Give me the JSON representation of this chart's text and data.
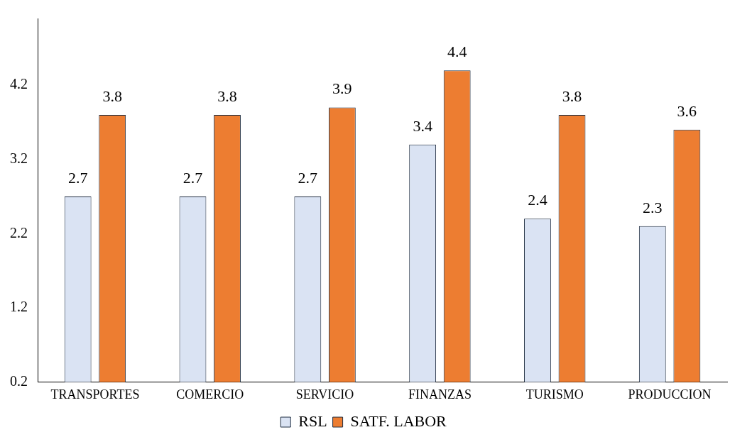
{
  "chart_data": {
    "type": "bar",
    "categories": [
      "TRANSPORTES",
      "COMERCIO",
      "SERVICIO",
      "FINANZAS",
      "TURISMO",
      "PRODUCCION"
    ],
    "series": [
      {
        "name": "RSL",
        "color": "#dae3f3",
        "values": [
          2.7,
          2.7,
          2.7,
          3.4,
          2.4,
          2.3
        ]
      },
      {
        "name": "SATF. LABOR",
        "color": "#ed7d31",
        "values": [
          3.8,
          3.8,
          3.9,
          4.4,
          3.8,
          3.6
        ]
      }
    ],
    "ylim": [
      0.2,
      5.1
    ],
    "yticks": [
      0.2,
      1.2,
      2.2,
      3.2,
      4.2
    ],
    "grid": false,
    "legend": "bottom",
    "data_labels": true
  }
}
